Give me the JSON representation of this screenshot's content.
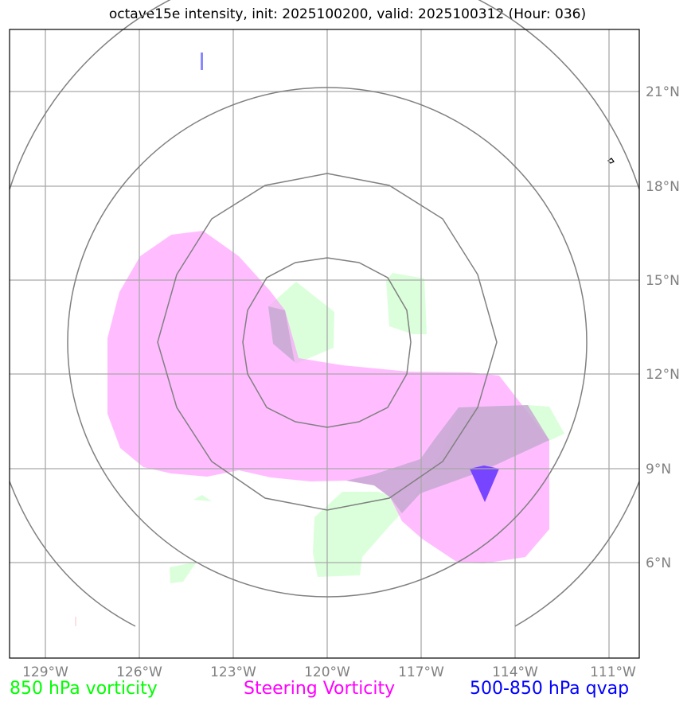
{
  "title": "octave15e intensity, init: 2025100200, valid: 2025100312 (Hour: 036)",
  "lon_labels": [
    "129°W",
    "126°W",
    "123°W",
    "120°W",
    "117°W",
    "114°W",
    "111°W"
  ],
  "lat_labels": [
    "21°N",
    "18°N",
    "15°N",
    "12°N",
    "9°N",
    "6°N"
  ],
  "legend": {
    "vort850": "850 hPa vorticity",
    "steering": "Steering Vorticity",
    "qvap": "500-850 hPa qvap"
  },
  "colors": {
    "vort850": "#00ff00",
    "steering": "#ff00ff",
    "qvap": "#0000ff",
    "grid": "#808080"
  },
  "storm_center": {
    "lon": -120.0,
    "lat": 13.0
  }
}
